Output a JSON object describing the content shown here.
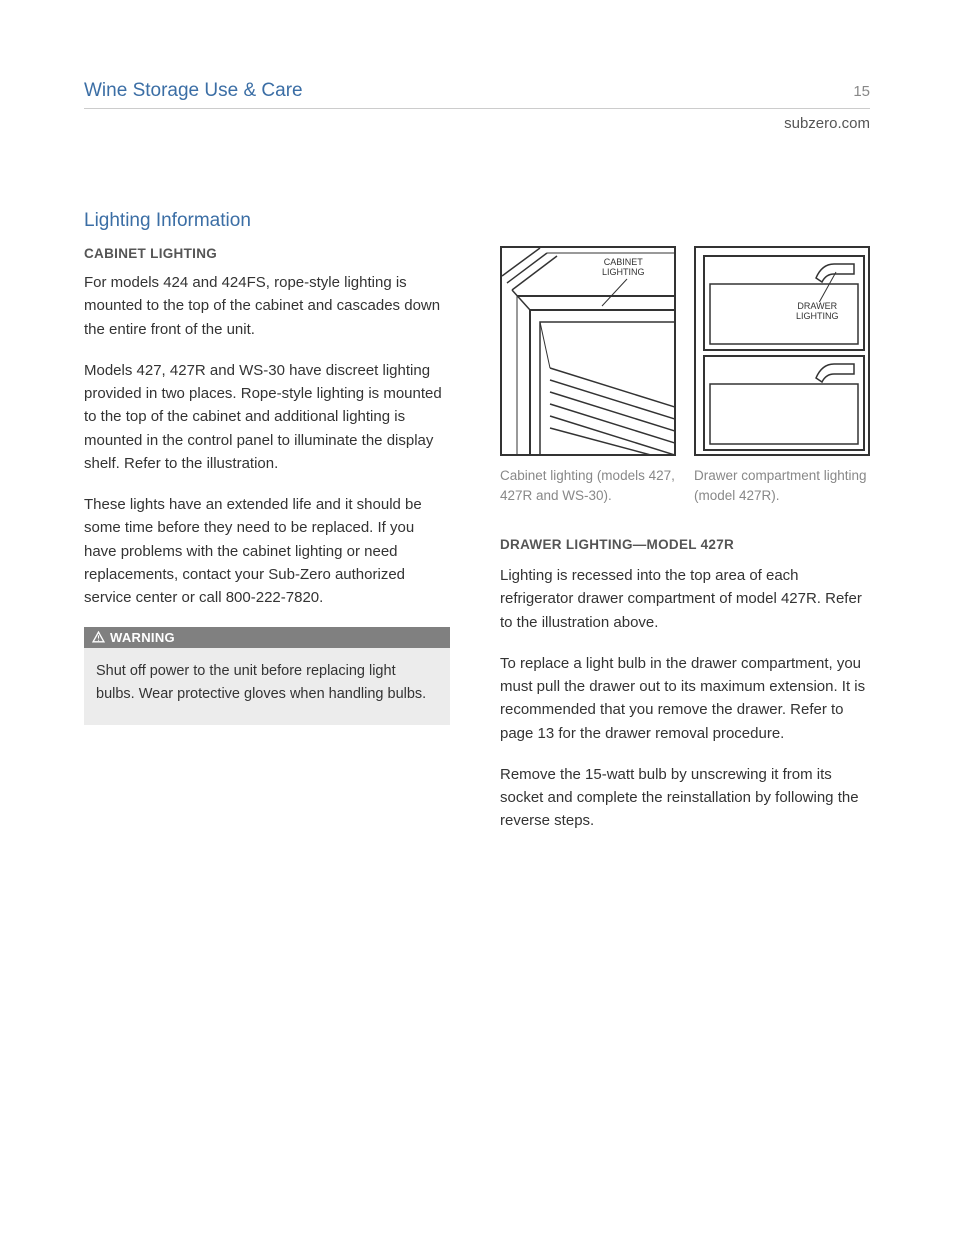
{
  "header": {
    "title": "Wine Storage Use & Care",
    "page_number": "15",
    "site": "subzero.com"
  },
  "section": {
    "title": "Lighting Information"
  },
  "left": {
    "subhead": "CABINET LIGHTING",
    "p1": "For models 424 and 424FS, rope-style lighting is mounted to the top of the cabinet and cascades down the entire front of the unit.",
    "p2": "Models 427, 427R and WS-30 have discreet lighting provided in two places. Rope-style lighting is mounted to the top of the cabinet and additional lighting is mounted in the control panel to illuminate the display shelf. Refer to the illustration.",
    "p3": "These lights have an extended life and it should be some time before they need to be replaced. If you have problems with the cabinet lighting or need replacements, contact your Sub-Zero authorized service center or call 800-222-7820.",
    "warning_label": "WARNING",
    "warning_text": "Shut off power to the unit before replacing light bulbs. Wear protective gloves when handling bulbs."
  },
  "figures": {
    "fig1_label": "CABINET\nLIGHTING",
    "fig1_caption": "Cabinet lighting (models 427, 427R and WS-30).",
    "fig2_label": "DRAWER\nLIGHTING",
    "fig2_caption": "Drawer compartment lighting (model 427R)."
  },
  "right": {
    "subhead": "DRAWER LIGHTING—MODEL 427R",
    "p1": "Lighting is recessed into the top area of each refrigerator drawer compartment of model 427R. Refer to the illustration above.",
    "p2": "To replace a light bulb in the drawer compartment, you must pull the drawer out to its maximum extension. It is recommended that you remove the drawer. Refer to page 13 for the drawer removal procedure.",
    "p3": "Remove the 15-watt bulb by unscrewing it from its socket and complete the reinstallation by following the reverse steps."
  },
  "colors": {
    "accent": "#3b6ea5",
    "text": "#333333",
    "muted": "#888888",
    "rule": "#cccccc",
    "warning_bar": "#808080",
    "warning_bg": "#ececec"
  }
}
